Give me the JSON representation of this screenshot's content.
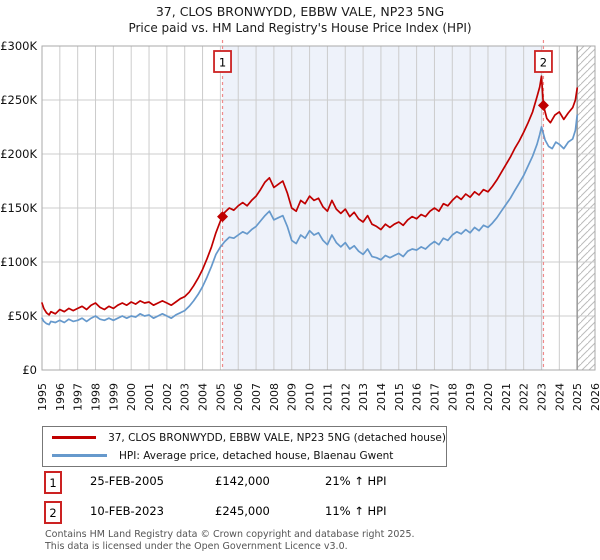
{
  "title": "37, CLOS BRONWYDD, EBBW VALE, NP23 5NG",
  "subtitle": "Price paid vs. HM Land Registry's House Price Index (HPI)",
  "legend": [
    {
      "label": "37, CLOS BRONWYDD, EBBW VALE, NP23 5NG (detached house)",
      "color": "#c00000"
    },
    {
      "label": "HPI: Average price, detached house, Blaenau Gwent",
      "color": "#6699cc"
    }
  ],
  "sales": [
    {
      "num": "1",
      "date": "25-FEB-2005",
      "price": "£142,000",
      "hpi": "21% ↑ HPI",
      "year": 2005.12,
      "value": 142
    },
    {
      "num": "2",
      "date": "10-FEB-2023",
      "price": "£245,000",
      "hpi": "11% ↑ HPI",
      "year": 2023.11,
      "value": 245
    }
  ],
  "footer": [
    "Contains HM Land Registry data © Crown copyright and database right 2025.",
    "This data is licensed under the Open Government Licence v3.0."
  ],
  "chart_data": {
    "type": "line",
    "title": "37, CLOS BRONWYDD, EBBW VALE, NP23 5NG — Price paid vs. HPI",
    "xlim": [
      1995,
      2026
    ],
    "ylim": [
      0,
      300
    ],
    "grid": true,
    "legend_position": "below",
    "x_ticks": [
      1995,
      1996,
      1997,
      1998,
      1999,
      2000,
      2001,
      2002,
      2003,
      2004,
      2005,
      2006,
      2007,
      2008,
      2009,
      2010,
      2011,
      2012,
      2013,
      2014,
      2015,
      2016,
      2017,
      2018,
      2019,
      2020,
      2021,
      2022,
      2023,
      2024,
      2025,
      2026
    ],
    "y_ticks": [
      {
        "v": 0,
        "label": "£0"
      },
      {
        "v": 50,
        "label": "£50K"
      },
      {
        "v": 100,
        "label": "£100K"
      },
      {
        "v": 150,
        "label": "£150K"
      },
      {
        "v": 200,
        "label": "£200K"
      },
      {
        "v": 250,
        "label": "£250K"
      },
      {
        "v": 300,
        "label": "£300K"
      }
    ],
    "shaded_region": [
      2005.12,
      2023.11
    ],
    "future_start": 2025.0,
    "colors": {
      "red": "#c00000",
      "blue": "#6699cc",
      "shade": "#eef2fa",
      "grid": "#cccccc",
      "border": "#aaaaaa",
      "dash": "#f08a8a",
      "hatch": "#bbbbbb",
      "future_edge": "#999999",
      "box_border": "#cc2222"
    },
    "series": [
      {
        "name": "37, CLOS BRONWYDD, EBBW VALE, NP23 5NG (detached house)",
        "color": "#c00000",
        "unit": "£K",
        "points": [
          [
            1995.0,
            62
          ],
          [
            1995.1,
            57
          ],
          [
            1995.25,
            53
          ],
          [
            1995.4,
            51
          ],
          [
            1995.5,
            54
          ],
          [
            1995.75,
            52
          ],
          [
            1996.0,
            56
          ],
          [
            1996.25,
            54
          ],
          [
            1996.5,
            57
          ],
          [
            1996.75,
            55
          ],
          [
            1997.0,
            57
          ],
          [
            1997.25,
            59
          ],
          [
            1997.5,
            56
          ],
          [
            1997.75,
            60
          ],
          [
            1998.0,
            62
          ],
          [
            1998.25,
            58
          ],
          [
            1998.5,
            56
          ],
          [
            1998.75,
            59
          ],
          [
            1999.0,
            57
          ],
          [
            1999.25,
            60
          ],
          [
            1999.5,
            62
          ],
          [
            1999.75,
            60
          ],
          [
            2000.0,
            63
          ],
          [
            2000.25,
            61
          ],
          [
            2000.5,
            64
          ],
          [
            2000.75,
            62
          ],
          [
            2001.0,
            63
          ],
          [
            2001.25,
            60
          ],
          [
            2001.5,
            62
          ],
          [
            2001.75,
            64
          ],
          [
            2002.0,
            62
          ],
          [
            2002.25,
            60
          ],
          [
            2002.5,
            63
          ],
          [
            2002.75,
            66
          ],
          [
            2003.0,
            68
          ],
          [
            2003.25,
            72
          ],
          [
            2003.5,
            78
          ],
          [
            2003.75,
            85
          ],
          [
            2004.0,
            93
          ],
          [
            2004.25,
            103
          ],
          [
            2004.5,
            114
          ],
          [
            2004.75,
            127
          ],
          [
            2005.0,
            138
          ],
          [
            2005.12,
            142
          ],
          [
            2005.25,
            146
          ],
          [
            2005.5,
            150
          ],
          [
            2005.75,
            148
          ],
          [
            2006.0,
            152
          ],
          [
            2006.25,
            155
          ],
          [
            2006.5,
            152
          ],
          [
            2006.75,
            157
          ],
          [
            2007.0,
            161
          ],
          [
            2007.25,
            167
          ],
          [
            2007.5,
            174
          ],
          [
            2007.75,
            178
          ],
          [
            2008.0,
            169
          ],
          [
            2008.25,
            172
          ],
          [
            2008.5,
            175
          ],
          [
            2008.75,
            164
          ],
          [
            2009.0,
            150
          ],
          [
            2009.25,
            147
          ],
          [
            2009.5,
            157
          ],
          [
            2009.75,
            154
          ],
          [
            2010.0,
            161
          ],
          [
            2010.25,
            157
          ],
          [
            2010.5,
            159
          ],
          [
            2010.75,
            151
          ],
          [
            2011.0,
            147
          ],
          [
            2011.25,
            157
          ],
          [
            2011.5,
            149
          ],
          [
            2011.75,
            145
          ],
          [
            2012.0,
            149
          ],
          [
            2012.25,
            142
          ],
          [
            2012.5,
            146
          ],
          [
            2012.75,
            140
          ],
          [
            2013.0,
            137
          ],
          [
            2013.25,
            143
          ],
          [
            2013.5,
            135
          ],
          [
            2013.75,
            133
          ],
          [
            2014.0,
            130
          ],
          [
            2014.25,
            135
          ],
          [
            2014.5,
            132
          ],
          [
            2014.75,
            135
          ],
          [
            2015.0,
            137
          ],
          [
            2015.25,
            134
          ],
          [
            2015.5,
            139
          ],
          [
            2015.75,
            142
          ],
          [
            2016.0,
            140
          ],
          [
            2016.25,
            144
          ],
          [
            2016.5,
            142
          ],
          [
            2016.75,
            147
          ],
          [
            2017.0,
            150
          ],
          [
            2017.25,
            147
          ],
          [
            2017.5,
            154
          ],
          [
            2017.75,
            152
          ],
          [
            2018.0,
            157
          ],
          [
            2018.25,
            161
          ],
          [
            2018.5,
            158
          ],
          [
            2018.75,
            163
          ],
          [
            2019.0,
            160
          ],
          [
            2019.25,
            165
          ],
          [
            2019.5,
            162
          ],
          [
            2019.75,
            167
          ],
          [
            2020.0,
            165
          ],
          [
            2020.25,
            170
          ],
          [
            2020.5,
            176
          ],
          [
            2020.75,
            183
          ],
          [
            2021.0,
            190
          ],
          [
            2021.25,
            197
          ],
          [
            2021.5,
            205
          ],
          [
            2021.75,
            212
          ],
          [
            2022.0,
            220
          ],
          [
            2022.25,
            229
          ],
          [
            2022.5,
            239
          ],
          [
            2022.75,
            253
          ],
          [
            2022.9,
            262
          ],
          [
            2023.0,
            272
          ],
          [
            2023.11,
            245
          ],
          [
            2023.3,
            233
          ],
          [
            2023.5,
            229
          ],
          [
            2023.75,
            236
          ],
          [
            2024.0,
            239
          ],
          [
            2024.25,
            232
          ],
          [
            2024.5,
            238
          ],
          [
            2024.75,
            243
          ],
          [
            2024.9,
            250
          ],
          [
            2025.0,
            261
          ]
        ]
      },
      {
        "name": "HPI: Average price, detached house, Blaenau Gwent",
        "color": "#6699cc",
        "unit": "£K",
        "points": [
          [
            1995.0,
            48
          ],
          [
            1995.1,
            45
          ],
          [
            1995.25,
            43
          ],
          [
            1995.4,
            42
          ],
          [
            1995.5,
            45
          ],
          [
            1995.75,
            44
          ],
          [
            1996.0,
            46
          ],
          [
            1996.25,
            44
          ],
          [
            1996.5,
            47
          ],
          [
            1996.75,
            45
          ],
          [
            1997.0,
            46
          ],
          [
            1997.25,
            48
          ],
          [
            1997.5,
            45
          ],
          [
            1997.75,
            48
          ],
          [
            1998.0,
            50
          ],
          [
            1998.25,
            47
          ],
          [
            1998.5,
            46
          ],
          [
            1998.75,
            48
          ],
          [
            1999.0,
            46
          ],
          [
            1999.25,
            48
          ],
          [
            1999.5,
            50
          ],
          [
            1999.75,
            48
          ],
          [
            2000.0,
            50
          ],
          [
            2000.25,
            49
          ],
          [
            2000.5,
            52
          ],
          [
            2000.75,
            50
          ],
          [
            2001.0,
            51
          ],
          [
            2001.25,
            48
          ],
          [
            2001.5,
            50
          ],
          [
            2001.75,
            52
          ],
          [
            2002.0,
            50
          ],
          [
            2002.25,
            48
          ],
          [
            2002.5,
            51
          ],
          [
            2002.75,
            53
          ],
          [
            2003.0,
            55
          ],
          [
            2003.25,
            59
          ],
          [
            2003.5,
            64
          ],
          [
            2003.75,
            70
          ],
          [
            2004.0,
            77
          ],
          [
            2004.25,
            86
          ],
          [
            2004.5,
            96
          ],
          [
            2004.75,
            107
          ],
          [
            2005.0,
            114
          ],
          [
            2005.25,
            119
          ],
          [
            2005.5,
            123
          ],
          [
            2005.75,
            122
          ],
          [
            2006.0,
            125
          ],
          [
            2006.25,
            128
          ],
          [
            2006.5,
            126
          ],
          [
            2006.75,
            130
          ],
          [
            2007.0,
            133
          ],
          [
            2007.25,
            138
          ],
          [
            2007.5,
            143
          ],
          [
            2007.75,
            147
          ],
          [
            2008.0,
            139
          ],
          [
            2008.25,
            141
          ],
          [
            2008.5,
            143
          ],
          [
            2008.75,
            133
          ],
          [
            2009.0,
            120
          ],
          [
            2009.25,
            117
          ],
          [
            2009.5,
            125
          ],
          [
            2009.75,
            122
          ],
          [
            2010.0,
            129
          ],
          [
            2010.25,
            125
          ],
          [
            2010.5,
            127
          ],
          [
            2010.75,
            120
          ],
          [
            2011.0,
            116
          ],
          [
            2011.25,
            125
          ],
          [
            2011.5,
            118
          ],
          [
            2011.75,
            114
          ],
          [
            2012.0,
            118
          ],
          [
            2012.25,
            112
          ],
          [
            2012.5,
            115
          ],
          [
            2012.75,
            110
          ],
          [
            2013.0,
            107
          ],
          [
            2013.25,
            112
          ],
          [
            2013.5,
            105
          ],
          [
            2013.75,
            104
          ],
          [
            2014.0,
            102
          ],
          [
            2014.25,
            106
          ],
          [
            2014.5,
            104
          ],
          [
            2014.75,
            106
          ],
          [
            2015.0,
            108
          ],
          [
            2015.25,
            105
          ],
          [
            2015.5,
            110
          ],
          [
            2015.75,
            112
          ],
          [
            2016.0,
            111
          ],
          [
            2016.25,
            114
          ],
          [
            2016.5,
            112
          ],
          [
            2016.75,
            116
          ],
          [
            2017.0,
            119
          ],
          [
            2017.25,
            116
          ],
          [
            2017.5,
            122
          ],
          [
            2017.75,
            120
          ],
          [
            2018.0,
            125
          ],
          [
            2018.25,
            128
          ],
          [
            2018.5,
            126
          ],
          [
            2018.75,
            130
          ],
          [
            2019.0,
            127
          ],
          [
            2019.25,
            132
          ],
          [
            2019.5,
            129
          ],
          [
            2019.75,
            134
          ],
          [
            2020.0,
            132
          ],
          [
            2020.25,
            136
          ],
          [
            2020.5,
            141
          ],
          [
            2020.75,
            147
          ],
          [
            2021.0,
            153
          ],
          [
            2021.25,
            159
          ],
          [
            2021.5,
            166
          ],
          [
            2021.75,
            173
          ],
          [
            2022.0,
            180
          ],
          [
            2022.25,
            189
          ],
          [
            2022.5,
            198
          ],
          [
            2022.75,
            209
          ],
          [
            2022.9,
            218
          ],
          [
            2023.0,
            225
          ],
          [
            2023.2,
            213
          ],
          [
            2023.4,
            207
          ],
          [
            2023.6,
            205
          ],
          [
            2023.8,
            211
          ],
          [
            2024.0,
            209
          ],
          [
            2024.25,
            205
          ],
          [
            2024.5,
            211
          ],
          [
            2024.75,
            214
          ],
          [
            2024.9,
            222
          ],
          [
            2025.0,
            236
          ]
        ]
      }
    ]
  }
}
